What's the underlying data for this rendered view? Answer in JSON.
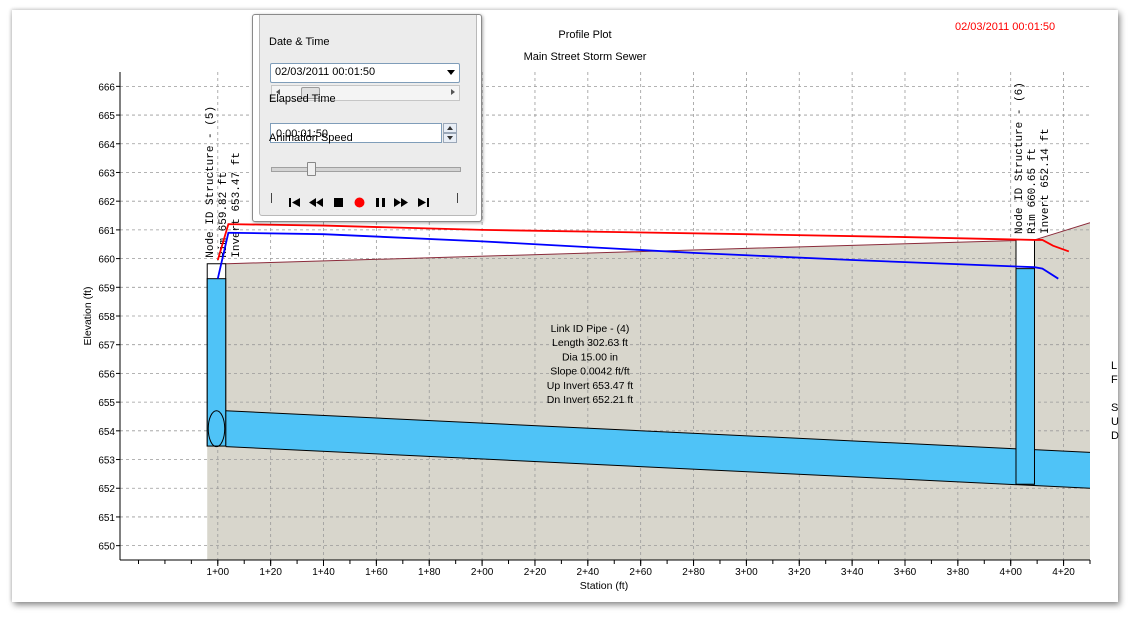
{
  "chart_data": {
    "type": "line",
    "title": "Profile Plot",
    "subtitle": "Main Street Storm Sewer",
    "timestamp": "02/03/2011 00:01:50",
    "xlabel": "Station (ft)",
    "ylabel": "Elevation (ft)",
    "xlim": [
      63,
      430
    ],
    "ylim": [
      649.5,
      666.5
    ],
    "x_ticks": [
      100,
      120,
      140,
      160,
      180,
      200,
      220,
      240,
      260,
      280,
      300,
      320,
      340,
      360,
      380,
      400,
      420
    ],
    "x_tick_labels": [
      "1+00",
      "1+20",
      "1+40",
      "1+60",
      "1+80",
      "2+00",
      "2+20",
      "2+40",
      "2+60",
      "2+80",
      "3+00",
      "3+20",
      "3+40",
      "3+60",
      "3+80",
      "4+00",
      "4+20"
    ],
    "y_ticks": [
      650,
      651,
      652,
      653,
      654,
      655,
      656,
      657,
      658,
      659,
      660,
      661,
      662,
      663,
      664,
      665,
      666
    ],
    "y_tick_labels": [
      "650",
      "651",
      "652",
      "653",
      "654",
      "655",
      "656",
      "657",
      "658",
      "659",
      "660",
      "661",
      "662",
      "663",
      "664",
      "665",
      "666"
    ],
    "grid": true,
    "ground_fill_color": "#d8d6cc",
    "water_color": "#4fc3f7",
    "ground_surface": {
      "x": [
        96,
        409,
        430
      ],
      "y": [
        659.8,
        660.65,
        661.25
      ]
    },
    "series": [
      {
        "color": "#ff0000",
        "x": [
          100,
          104,
          140,
          200,
          300,
          360,
          409,
          412,
          416,
          422
        ],
        "y": [
          659.95,
          661.2,
          661.15,
          661.0,
          660.85,
          660.75,
          660.65,
          660.65,
          660.45,
          660.25
        ]
      },
      {
        "color": "#0000ff",
        "x": [
          100,
          104,
          140,
          200,
          280,
          340,
          409,
          412,
          418
        ],
        "y": [
          659.3,
          660.9,
          660.85,
          660.6,
          660.2,
          659.95,
          659.7,
          659.65,
          659.3
        ]
      }
    ],
    "pipe": {
      "x": [
        103,
        430
      ],
      "top": [
        654.7,
        653.25
      ],
      "bottom": [
        653.45,
        652.0
      ]
    },
    "structures": [
      {
        "label_lines": [
          "Node ID Structure - (5)",
          "Rim 659.82 ft",
          "Invert 653.47 ft"
        ],
        "x_left": 96,
        "x_right": 103,
        "rim": 659.82,
        "invert": 653.47,
        "water": 659.3
      },
      {
        "label_lines": [
          "Node ID Structure - (6)",
          "Rim 660.65 ft",
          "Invert 652.14 ft"
        ],
        "x_left": 402,
        "x_right": 409,
        "rim": 660.65,
        "invert": 652.14,
        "water": 659.65
      }
    ],
    "annotations": [
      "Link ID Pipe - (4)",
      "Length 302.63 ft",
      "Dia 15.00 in",
      "Slope 0.0042 ft/ft",
      "Up Invert 653.47 ft",
      "Dn Invert 652.21 ft"
    ],
    "right_fragments": [
      "L",
      "F",
      "S",
      "U",
      "D"
    ]
  },
  "panel": {
    "date_time_label": "Date & Time",
    "date_time_value": "02/03/2011 00:01:50",
    "date_time_position": 0.12,
    "elapsed_label": "Elapsed Time",
    "elapsed_value": "0.00:01:50",
    "speed_label": "Animation Speed",
    "speed_level": 0.2,
    "controls": [
      "skip-to-start-icon",
      "rewind-icon",
      "stop-icon",
      "record-icon",
      "pause-icon",
      "fast-forward-icon",
      "skip-to-end-icon"
    ],
    "record_color": "#ff0000"
  }
}
